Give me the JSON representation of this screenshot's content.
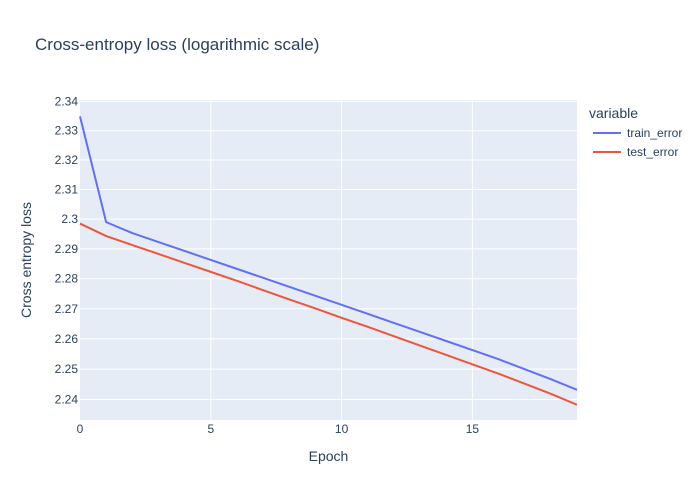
{
  "chart_data": {
    "type": "line",
    "title": "Cross-entropy loss (logarithmic scale)",
    "xlabel": "Epoch",
    "ylabel": "Cross entropy loss",
    "xlim": [
      0,
      19
    ],
    "ylim": [
      2.2333,
      2.3405
    ],
    "y_scale": "log",
    "grid": true,
    "plot_background": "#E5ECF6",
    "x_ticks": [
      0,
      5,
      10,
      15
    ],
    "y_ticks": [
      2.24,
      2.25,
      2.26,
      2.27,
      2.28,
      2.29,
      2.3,
      2.31,
      2.32,
      2.33,
      2.34
    ],
    "y_tick_labels": [
      "2.24",
      "2.25",
      "2.26",
      "2.27",
      "2.28",
      "2.29",
      "2.3",
      "2.31",
      "2.32",
      "2.33",
      "2.34"
    ],
    "x_tick_labels": [
      "0",
      "5",
      "10",
      "15"
    ],
    "legend": {
      "title": "variable",
      "position": "right"
    },
    "x": [
      0,
      1,
      2,
      3,
      4,
      5,
      6,
      7,
      8,
      9,
      10,
      11,
      12,
      13,
      14,
      15,
      16,
      17,
      18,
      19
    ],
    "series": [
      {
        "name": "train_error",
        "color": "#636EFA",
        "values": [
          2.3349,
          2.299,
          2.2953,
          2.2923,
          2.2893,
          2.2863,
          2.2833,
          2.2803,
          2.2773,
          2.2743,
          2.2713,
          2.2683,
          2.2653,
          2.2623,
          2.2593,
          2.2563,
          2.2533,
          2.25,
          2.2467,
          2.2432
        ]
      },
      {
        "name": "test_error",
        "color": "#EF553B",
        "values": [
          2.2985,
          2.2943,
          2.2913,
          2.2883,
          2.2853,
          2.2823,
          2.2793,
          2.2762,
          2.2731,
          2.2701,
          2.267,
          2.264,
          2.2609,
          2.2578,
          2.2547,
          2.2516,
          2.2485,
          2.2452,
          2.2419,
          2.2383
        ]
      }
    ]
  }
}
